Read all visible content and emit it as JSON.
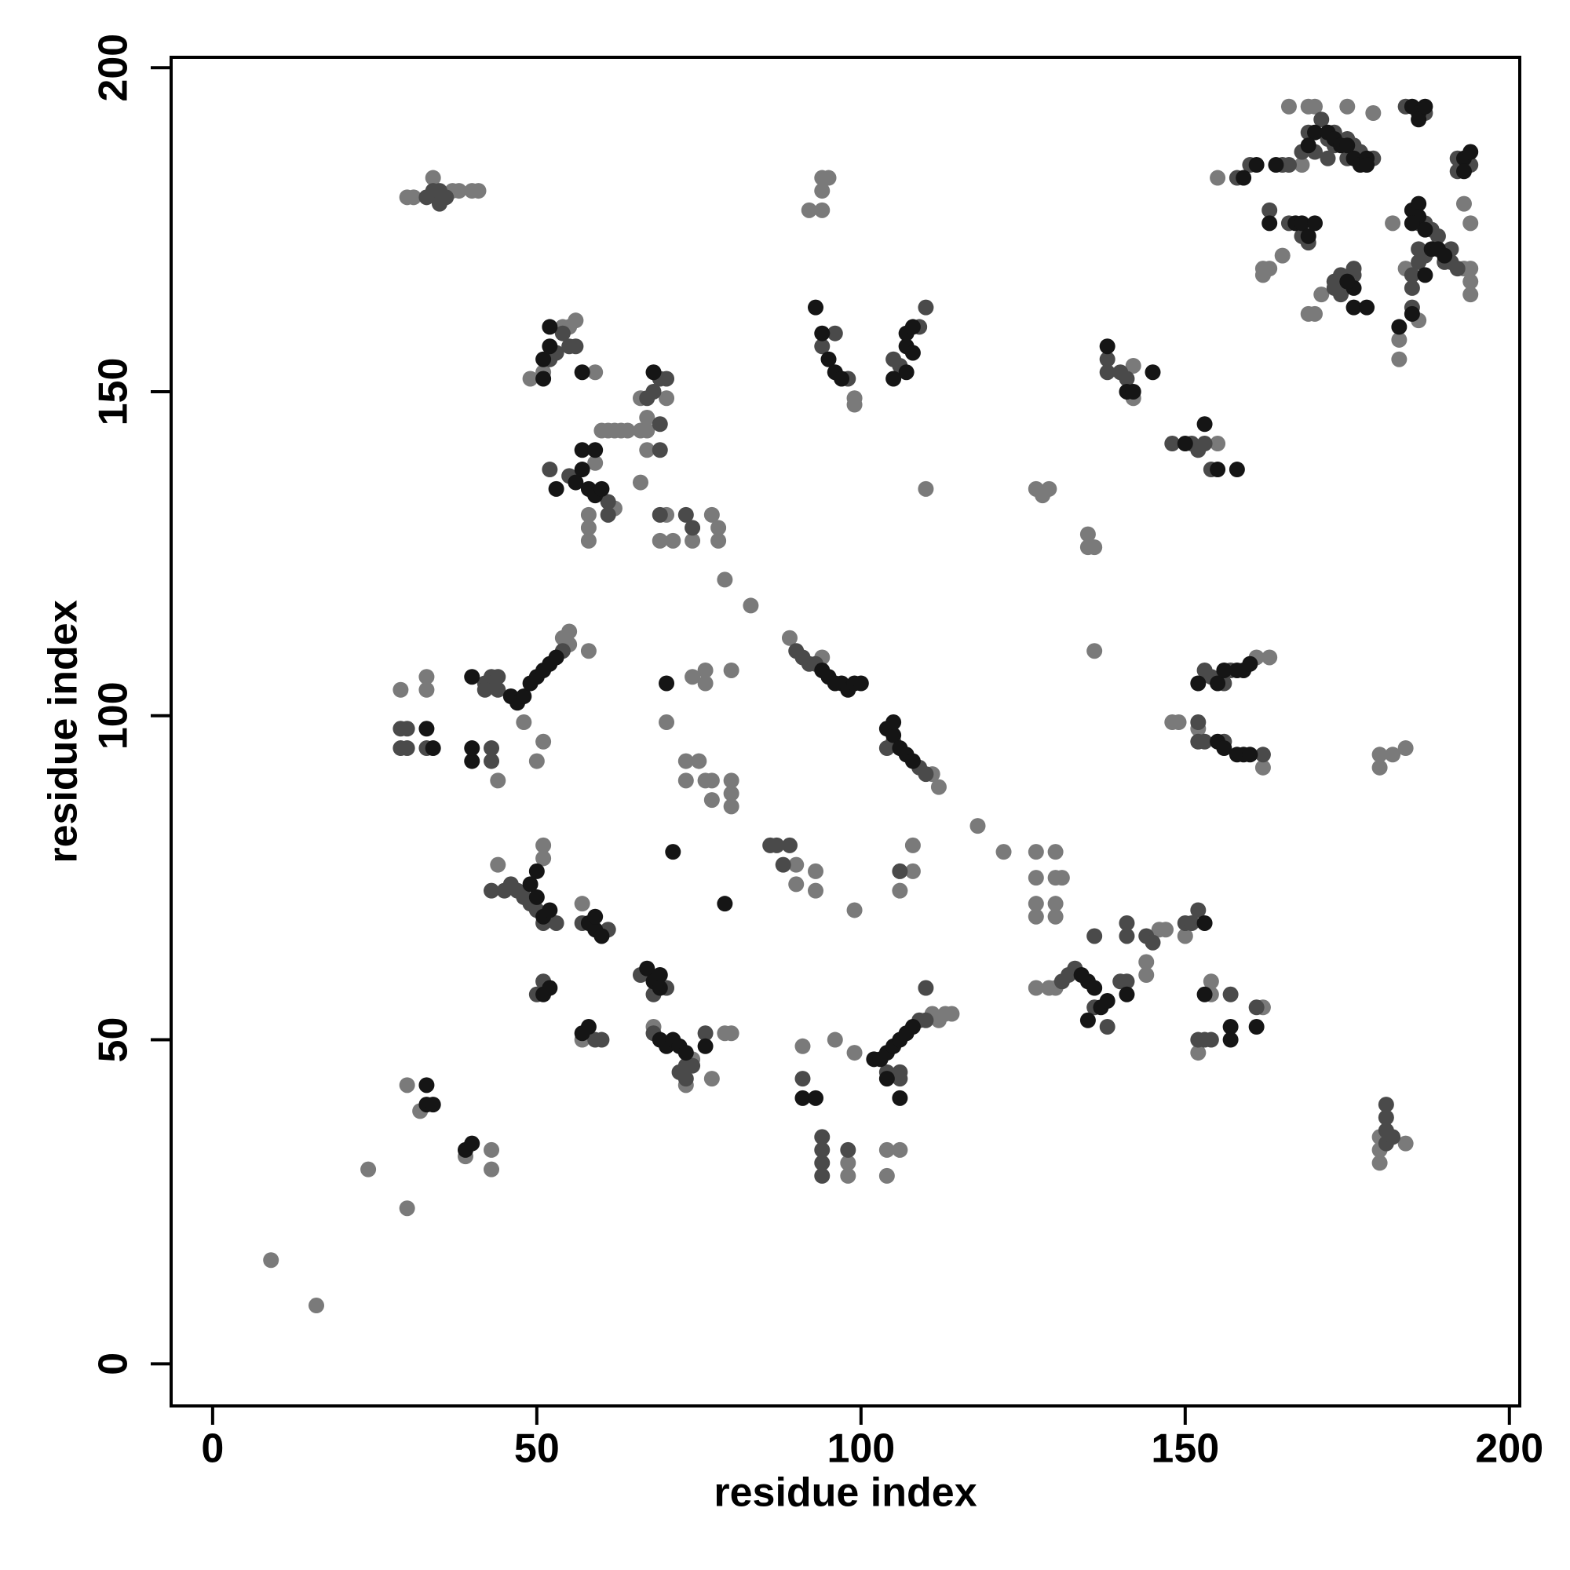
{
  "chart_data": {
    "type": "scatter",
    "xlabel": "residue index",
    "ylabel": "residue index",
    "xlim": [
      -6.4,
      201.6
    ],
    "ylim": [
      -6.5,
      201.6
    ],
    "xticks": [
      0,
      50,
      100,
      150,
      200
    ],
    "yticks": [
      0,
      50,
      100,
      150,
      200
    ],
    "marker_radius": 10,
    "series": [
      {
        "color": "#7a7a7a",
        "x": [
          9,
          16,
          24,
          30,
          30,
          32,
          39,
          43,
          43,
          29,
          33,
          33,
          44,
          54,
          55,
          55,
          58,
          48,
          50,
          51,
          44,
          51,
          51,
          57,
          57,
          68,
          73,
          74,
          77,
          80,
          79,
          70,
          73,
          73,
          75,
          76,
          77,
          77,
          80,
          80,
          80,
          74,
          76,
          76,
          80,
          30,
          31,
          34,
          37,
          38,
          40,
          41,
          49,
          51,
          54,
          55,
          56,
          59,
          58,
          58,
          58,
          59,
          60,
          61,
          62,
          63,
          64,
          66,
          67,
          67,
          66,
          70,
          67,
          66,
          70,
          69,
          71,
          74,
          77,
          78,
          78,
          79,
          83,
          62,
          89,
          94,
          111,
          112,
          99,
          99,
          94,
          95,
          94,
          92,
          94,
          110,
          90,
          90,
          93,
          93,
          99,
          106,
          108,
          108,
          91,
          96,
          98,
          98,
          99,
          104,
          104,
          106,
          111,
          112,
          113,
          114,
          118,
          122,
          127,
          127,
          127,
          127,
          130,
          130,
          131,
          130,
          130,
          127,
          129,
          130,
          144,
          144,
          146,
          147,
          150,
          152,
          154,
          154,
          162,
          127,
          128,
          129,
          135,
          135,
          136,
          136,
          142,
          142,
          155,
          148,
          149,
          152,
          162,
          161,
          163,
          180,
          180,
          182,
          184,
          180,
          180,
          180,
          184,
          155,
          165,
          162,
          162,
          163,
          169,
          170,
          171,
          166,
          169,
          170,
          179,
          175,
          168,
          194,
          194,
          194,
          194,
          193,
          193,
          186,
          183,
          183,
          182,
          184
        ],
        "values": [
          16,
          9,
          30,
          24,
          43,
          39,
          32,
          33,
          30,
          104,
          104,
          106,
          90,
          112,
          113,
          111,
          110,
          99,
          93,
          96,
          77,
          78,
          80,
          71,
          50,
          52,
          43,
          47,
          44,
          51,
          51,
          99,
          93,
          90,
          93,
          90,
          90,
          87,
          90,
          88,
          86,
          106,
          107,
          105,
          107,
          180,
          180,
          183,
          181,
          181,
          181,
          181,
          152,
          153,
          160,
          160,
          161,
          153,
          131,
          129,
          127,
          139,
          144,
          144,
          144,
          144,
          144,
          144,
          144,
          146,
          149,
          149,
          141,
          136,
          131,
          127,
          127,
          127,
          131,
          129,
          127,
          121,
          117,
          132,
          112,
          109,
          91,
          89,
          149,
          148,
          183,
          183,
          181,
          178,
          178,
          135,
          77,
          74,
          76,
          73,
          70,
          73,
          76,
          80,
          49,
          50,
          31,
          29,
          48,
          29,
          33,
          33,
          54,
          53,
          54,
          54,
          83,
          79,
          79,
          75,
          71,
          69,
          79,
          75,
          75,
          71,
          69,
          58,
          58,
          58,
          62,
          60,
          67,
          67,
          66,
          48,
          57,
          59,
          55,
          135,
          134,
          135,
          128,
          126,
          126,
          110,
          154,
          149,
          142,
          99,
          99,
          98,
          92,
          109,
          109,
          94,
          92,
          94,
          95,
          35,
          33,
          31,
          34,
          183,
          171,
          169,
          168,
          169,
          162,
          162,
          165,
          194,
          194,
          194,
          193,
          194,
          185,
          169,
          167,
          165,
          176,
          179,
          169,
          161,
          158,
          155,
          176,
          169
        ]
      },
      {
        "color": "#4a4a4a",
        "x": [
          30,
          29,
          29,
          30,
          33,
          43,
          43,
          42,
          43,
          44,
          42,
          44,
          54,
          43,
          45,
          46,
          47,
          48,
          49,
          50,
          51,
          53,
          57,
          61,
          50,
          51,
          59,
          60,
          66,
          68,
          70,
          68,
          73,
          74,
          72,
          73,
          76,
          34,
          35,
          33,
          35,
          36,
          52,
          53,
          55,
          56,
          54,
          55,
          61,
          61,
          52,
          67,
          68,
          69,
          70,
          69,
          69,
          69,
          73,
          74,
          92,
          93,
          91,
          90,
          109,
          110,
          104,
          105,
          94,
          96,
          98,
          106,
          109,
          110,
          105,
          109,
          110,
          104,
          106,
          106,
          91,
          94,
          94,
          94,
          94,
          98,
          110,
          86,
          87,
          89,
          88,
          106,
          131,
          132,
          133,
          136,
          138,
          140,
          141,
          136,
          141,
          141,
          144,
          145,
          150,
          151,
          152,
          152,
          153,
          154,
          157,
          161,
          138,
          138,
          140,
          141,
          148,
          151,
          152,
          153,
          154,
          152,
          152,
          153,
          156,
          162,
          153,
          154,
          156,
          157,
          181,
          181,
          181,
          181,
          182,
          160,
          166,
          165,
          166,
          168,
          169,
          169,
          170,
          171,
          172,
          173,
          175,
          175,
          176,
          177,
          179,
          173,
          172,
          168,
          173,
          174,
          174,
          176,
          176,
          174,
          173,
          184,
          187,
          186,
          187,
          188,
          189,
          190,
          191,
          192,
          186,
          187,
          186,
          191,
          192,
          194,
          192,
          185,
          185,
          185,
          163,
          158
        ],
        "values": [
          98,
          98,
          95,
          95,
          95,
          93,
          95,
          105,
          106,
          106,
          104,
          104,
          110,
          73,
          73,
          74,
          73,
          72,
          71,
          70,
          68,
          68,
          68,
          67,
          57,
          59,
          50,
          50,
          60,
          57,
          58,
          51,
          46,
          46,
          45,
          44,
          51,
          181,
          179,
          180,
          181,
          180,
          155,
          156,
          157,
          157,
          159,
          137,
          133,
          131,
          138,
          149,
          150,
          152,
          152,
          145,
          141,
          131,
          131,
          129,
          108,
          108,
          109,
          110,
          92,
          91,
          95,
          96,
          157,
          159,
          152,
          154,
          160,
          163,
          155,
          53,
          53,
          45,
          45,
          44,
          44,
          35,
          33,
          31,
          29,
          33,
          58,
          80,
          80,
          80,
          77,
          76,
          59,
          60,
          61,
          55,
          52,
          59,
          59,
          66,
          68,
          66,
          66,
          65,
          68,
          68,
          70,
          50,
          50,
          50,
          57,
          55,
          155,
          153,
          153,
          152,
          142,
          142,
          141,
          142,
          138,
          99,
          96,
          96,
          96,
          94,
          107,
          106,
          105,
          107,
          36,
          38,
          40,
          34,
          35,
          185,
          185,
          185,
          176,
          174,
          173,
          190,
          187,
          192,
          189,
          188,
          186,
          189,
          188,
          187,
          186,
          190,
          186,
          187,
          167,
          168,
          167,
          168,
          169,
          165,
          166,
          194,
          193,
          176,
          176,
          175,
          174,
          170,
          170,
          169,
          170,
          171,
          172,
          172,
          184,
          185,
          186,
          168,
          166,
          163,
          178,
          183
        ]
      },
      {
        "color": "#151515",
        "x": [
          33,
          33,
          34,
          39,
          40,
          40,
          40,
          34,
          33,
          40,
          46,
          47,
          48,
          49,
          50,
          51,
          52,
          53,
          49,
          50,
          50,
          51,
          52,
          59,
          60,
          58,
          59,
          51,
          52,
          58,
          57,
          67,
          68,
          69,
          69,
          69,
          70,
          71,
          72,
          73,
          76,
          71,
          70,
          79,
          52,
          51,
          52,
          57,
          51,
          56,
          57,
          58,
          59,
          60,
          53,
          57,
          59,
          68,
          94,
          95,
          96,
          97,
          93,
          105,
          107,
          107,
          108,
          108,
          107,
          94,
          95,
          96,
          97,
          98,
          99,
          100,
          104,
          105,
          105,
          106,
          107,
          108,
          102,
          103,
          104,
          105,
          106,
          107,
          108,
          104,
          106,
          91,
          93,
          138,
          141,
          142,
          145,
          153,
          150,
          155,
          158,
          153,
          157,
          157,
          161,
          153,
          141,
          137,
          138,
          135,
          136,
          134,
          135,
          152,
          155,
          156,
          158,
          159,
          160,
          155,
          156,
          158,
          159,
          160,
          170,
          172,
          173,
          174,
          175,
          176,
          177,
          178,
          178,
          169,
          167,
          168,
          169,
          170,
          185,
          186,
          186,
          187,
          185,
          186,
          186,
          187,
          188,
          189,
          190,
          187,
          176,
          175,
          176,
          178,
          193,
          194,
          193,
          164,
          161,
          163,
          159,
          185,
          183,
          185
        ],
        "values": [
          43,
          40,
          40,
          33,
          34,
          93,
          95,
          95,
          98,
          106,
          103,
          102,
          103,
          105,
          106,
          107,
          108,
          109,
          74,
          72,
          76,
          69,
          70,
          67,
          66,
          68,
          69,
          57,
          58,
          52,
          51,
          61,
          59,
          60,
          58,
          50,
          49,
          50,
          49,
          48,
          49,
          79,
          105,
          71,
          160,
          155,
          157,
          153,
          152,
          136,
          138,
          135,
          134,
          135,
          135,
          141,
          141,
          153,
          159,
          155,
          153,
          152,
          163,
          152,
          157,
          159,
          160,
          156,
          153,
          107,
          106,
          105,
          105,
          104,
          105,
          105,
          98,
          97,
          99,
          95,
          94,
          93,
          47,
          47,
          48,
          49,
          50,
          51,
          52,
          44,
          41,
          41,
          41,
          157,
          150,
          150,
          153,
          145,
          142,
          138,
          138,
          57,
          52,
          50,
          52,
          68,
          57,
          55,
          56,
          59,
          58,
          60,
          53,
          105,
          105,
          107,
          107,
          107,
          108,
          96,
          95,
          94,
          94,
          94,
          190,
          190,
          189,
          188,
          188,
          186,
          185,
          186,
          185,
          188,
          176,
          176,
          174,
          176,
          194,
          193,
          192,
          194,
          178,
          179,
          177,
          175,
          172,
          172,
          171,
          168,
          166,
          167,
          163,
          163,
          186,
          187,
          184,
          185,
          185,
          176,
          183,
          162,
          160,
          176
        ]
      }
    ]
  }
}
